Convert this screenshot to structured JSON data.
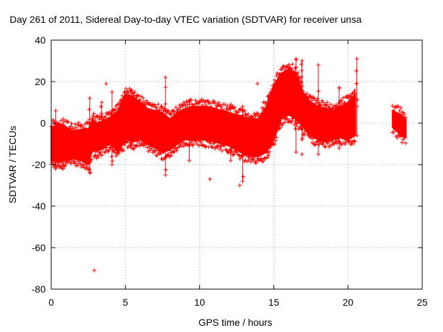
{
  "chart_data": {
    "type": "scatter",
    "title": "Day 261 of 2011, Sidereal Day-to-day VTEC variation (SDTVAR) for receiver unsa",
    "xlabel": "GPS time / hours",
    "ylabel": "SDTVAR / TECUs",
    "xlim": [
      0,
      25
    ],
    "ylim": [
      -80,
      40
    ],
    "xticks": [
      0,
      5,
      10,
      15,
      20,
      25
    ],
    "yticks": [
      -80,
      -60,
      -40,
      -20,
      0,
      20,
      40
    ],
    "grid": true,
    "marker": "+",
    "color": "#ff0000",
    "series": [
      {
        "name": "SDTVAR",
        "band": {
          "x": [
            0.0,
            0.5,
            1.0,
            1.5,
            2.0,
            2.5,
            2.8,
            3.0,
            3.5,
            4.0,
            4.5,
            5.0,
            5.5,
            6.0,
            6.5,
            7.0,
            7.5,
            8.0,
            8.5,
            9.0,
            9.5,
            10.0,
            10.5,
            11.0,
            11.5,
            12.0,
            12.5,
            13.0,
            13.5,
            14.0,
            14.5,
            15.0,
            15.5,
            16.0,
            16.5,
            17.0,
            17.5,
            18.0,
            18.5,
            19.0,
            19.5,
            20.0,
            20.5
          ],
          "lower": [
            -18,
            -19,
            -18,
            -17,
            -18,
            -20,
            -12,
            -14,
            -12,
            -10,
            -14,
            -8,
            -9,
            -8,
            -10,
            -12,
            -14,
            -13,
            -10,
            -8,
            -8,
            -8,
            -8,
            -9,
            -10,
            -11,
            -13,
            -15,
            -16,
            -16,
            -14,
            -8,
            2,
            4,
            2,
            -2,
            -6,
            -8,
            -9,
            -8,
            -7,
            -8,
            -6
          ],
          "upper": [
            -2,
            -1,
            -2,
            -4,
            -3,
            -3,
            2,
            0,
            1,
            3,
            6,
            14,
            13,
            10,
            7,
            6,
            5,
            2,
            5,
            7,
            8,
            8,
            8,
            7,
            6,
            5,
            4,
            3,
            2,
            2,
            8,
            18,
            24,
            26,
            24,
            14,
            10,
            8,
            7,
            6,
            8,
            10,
            14
          ]
        },
        "late_segment": {
          "x": [
            23.0,
            23.3,
            23.6,
            23.9
          ],
          "lower": [
            -2,
            -4,
            -6,
            -7
          ],
          "upper": [
            6,
            5,
            4,
            2
          ]
        },
        "spikes": [
          {
            "x": 0.3,
            "low": -22,
            "high": 6
          },
          {
            "x": 0.8,
            "low": -22,
            "high": 2
          },
          {
            "x": 2.6,
            "low": -24,
            "high": 12
          },
          {
            "x": 3.4,
            "low": -12,
            "high": 10
          },
          {
            "x": 4.1,
            "low": -20,
            "high": 15
          },
          {
            "x": 5.4,
            "low": -12,
            "high": 16
          },
          {
            "x": 7.7,
            "low": -25,
            "high": 22
          },
          {
            "x": 9.3,
            "low": -18,
            "high": 9
          },
          {
            "x": 12.1,
            "low": -18,
            "high": 9
          },
          {
            "x": 12.9,
            "low": -28,
            "high": 8
          },
          {
            "x": 14.6,
            "low": -14,
            "high": 13
          },
          {
            "x": 16.5,
            "low": -14,
            "high": 31
          },
          {
            "x": 16.9,
            "low": -8,
            "high": 30
          },
          {
            "x": 18.0,
            "low": -15,
            "high": 28
          },
          {
            "x": 19.4,
            "low": -12,
            "high": 17
          },
          {
            "x": 20.6,
            "low": -6,
            "high": 31
          }
        ],
        "outliers": [
          {
            "x": 2.9,
            "y": -71
          },
          {
            "x": 10.7,
            "y": -27
          },
          {
            "x": 12.7,
            "y": -30
          },
          {
            "x": 3.7,
            "y": 19
          },
          {
            "x": 13.9,
            "y": 19
          },
          {
            "x": 16.9,
            "y": -15
          },
          {
            "x": 14.3,
            "y": 10
          }
        ]
      }
    ]
  }
}
